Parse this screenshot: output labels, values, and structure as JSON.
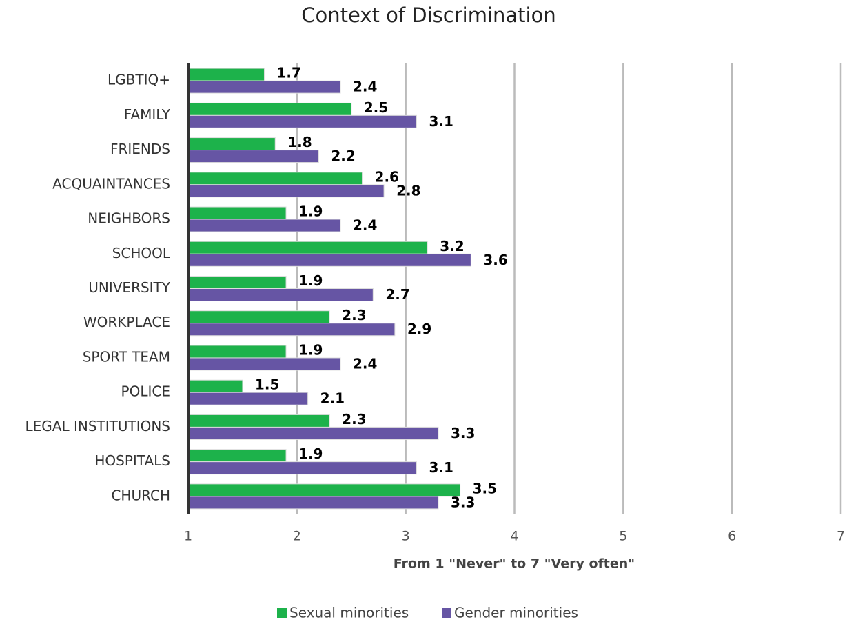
{
  "chart_data": {
    "type": "bar",
    "orientation": "horizontal",
    "title": "Context of Discrimination",
    "x_label": "From 1 \"Never\" to 7 \"Very often\"",
    "categories": [
      "LGBTIQ+",
      "FAMILY",
      "FRIENDS",
      "ACQUAINTANCES",
      "NEIGHBORS",
      "SCHOOL",
      "UNIVERSITY",
      "WORKPLACE",
      "SPORT TEAM",
      "POLICE",
      "LEGAL INSTITUTIONS",
      "HOSPITALS",
      "CHURCH"
    ],
    "series": [
      {
        "name": "Sexual minorities",
        "color": "#1db24b",
        "values": [
          1.7,
          2.5,
          1.8,
          2.6,
          1.9,
          3.2,
          1.9,
          2.3,
          1.9,
          1.5,
          2.3,
          1.9,
          3.5
        ]
      },
      {
        "name": "Gender minorities",
        "color": "#6655a4",
        "values": [
          2.4,
          3.1,
          2.2,
          2.8,
          2.4,
          3.6,
          2.7,
          2.9,
          2.4,
          2.1,
          3.3,
          3.1,
          3.3
        ]
      }
    ],
    "xlim": [
      1,
      7
    ],
    "xticks": [
      1,
      2,
      3,
      4,
      5,
      6,
      7
    ],
    "grid": true,
    "legend": "bottom"
  }
}
